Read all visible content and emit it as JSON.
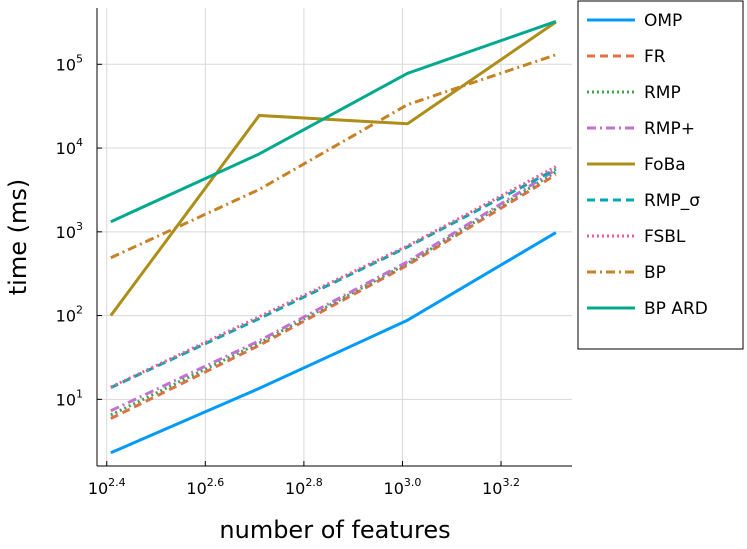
{
  "chart_data": {
    "type": "line",
    "x_label": "number of features",
    "y_label": "time (ms)",
    "x_scale": "log",
    "y_scale": "log",
    "grid": true,
    "legend_position": "outside-right",
    "xlim": [
      240,
      2208
    ],
    "ylim": [
      1.6,
      470000
    ],
    "xticks": [
      {
        "value": 251.19,
        "label": "10",
        "exponent": "2.4"
      },
      {
        "value": 398.11,
        "label": "10",
        "exponent": "2.6"
      },
      {
        "value": 630.96,
        "label": "10",
        "exponent": "2.8"
      },
      {
        "value": 1000,
        "label": "10",
        "exponent": "3.0"
      },
      {
        "value": 1584.89,
        "label": "10",
        "exponent": "3.2"
      }
    ],
    "yticks": [
      {
        "value": 10,
        "label": "10",
        "exponent": "1"
      },
      {
        "value": 100,
        "label": "10",
        "exponent": "2"
      },
      {
        "value": 1000,
        "label": "10",
        "exponent": "3"
      },
      {
        "value": 10000,
        "label": "10",
        "exponent": "4"
      },
      {
        "value": 100000,
        "label": "10",
        "exponent": "5"
      }
    ],
    "x": [
      256,
      512,
      1024,
      2048
    ],
    "series": [
      {
        "name": "OMP",
        "color": "#009af9",
        "dash": "solid",
        "values": [
          2.3,
          13.5,
          88,
          980
        ]
      },
      {
        "name": "FR",
        "color": "#e26f46",
        "dash": "dash",
        "values": [
          5.9,
          44,
          400,
          4800
        ]
      },
      {
        "name": "RMP",
        "color": "#3ea44e",
        "dash": "dot",
        "values": [
          6.5,
          47,
          420,
          5200
        ]
      },
      {
        "name": "RMP+",
        "color": "#c271d2",
        "dash": "dashdot",
        "values": [
          7.3,
          50,
          440,
          5500
        ]
      },
      {
        "name": "FoBa",
        "color": "#ac8e18",
        "dash": "solid",
        "values": [
          100,
          24500,
          19500,
          320000
        ]
      },
      {
        "name": "RMP_σ",
        "color": "#00a9ad",
        "dash": "dash",
        "values": [
          13.8,
          92,
          660,
          5600
        ]
      },
      {
        "name": "FSBL",
        "color": "#ed5d92",
        "dash": "dot",
        "values": [
          14,
          97,
          680,
          6000
        ]
      },
      {
        "name": "BP",
        "color": "#c68225",
        "dash": "dashdot",
        "values": [
          490,
          3200,
          33000,
          130000
        ]
      },
      {
        "name": "BP ARD",
        "color": "#00a98d",
        "dash": "solid",
        "values": [
          1320,
          8500,
          78000,
          325000
        ]
      }
    ]
  }
}
